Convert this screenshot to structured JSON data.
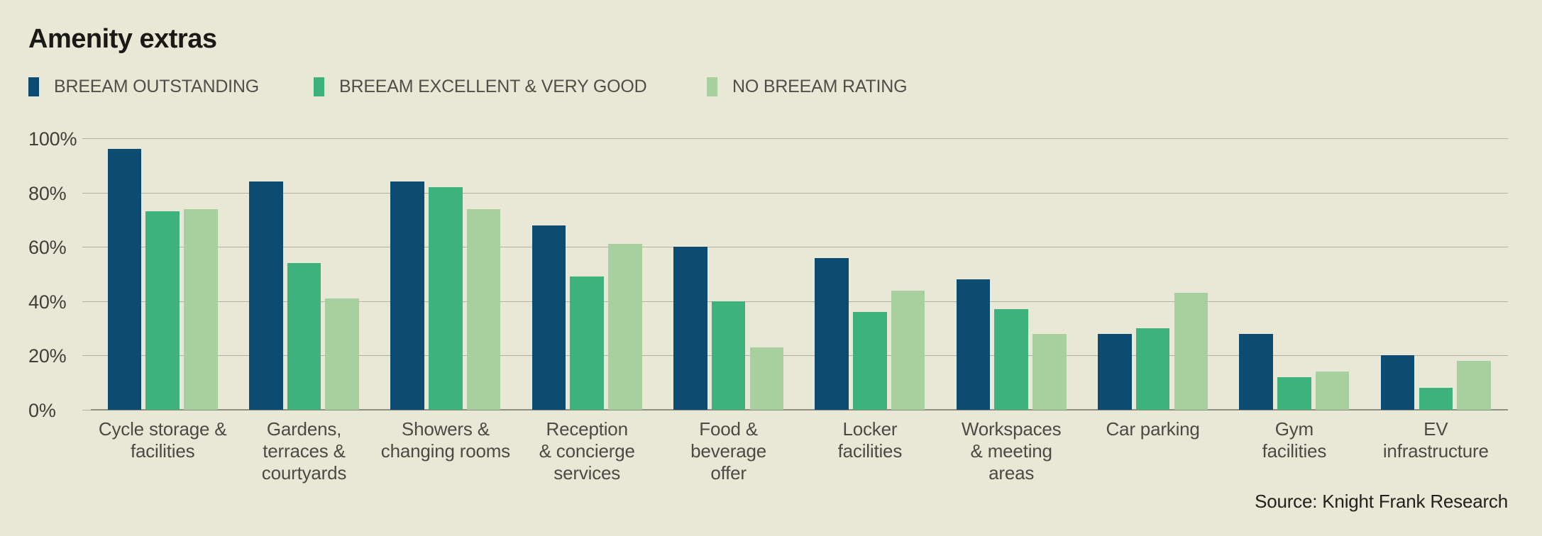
{
  "title": "Amenity extras",
  "source": "Source: Knight Frank Research",
  "colors": {
    "background": "#e9e8d7",
    "gridline": "#b2b1a3",
    "axisline": "#8f8e80",
    "series_outstanding": "#0e4b70",
    "series_excellent_verygood": "#3eb27d",
    "series_no_rating": "#a8cf9e"
  },
  "legend": [
    {
      "label": "BREEAM OUTSTANDING",
      "color": "#0e4b70"
    },
    {
      "label": "BREEAM EXCELLENT & VERY GOOD",
      "color": "#3eb27d"
    },
    {
      "label": "NO BREEAM RATING",
      "color": "#a8cf9e"
    }
  ],
  "chart_data": {
    "type": "bar",
    "title": "Amenity extras",
    "xlabel": "",
    "ylabel": "",
    "ylim": [
      0,
      100
    ],
    "grid": "horizontal",
    "legend_position": "top-left",
    "yticks": [
      {
        "value": 100,
        "label": "100%"
      },
      {
        "value": 80,
        "label": "80%"
      },
      {
        "value": 60,
        "label": "60%"
      },
      {
        "value": 40,
        "label": "40%"
      },
      {
        "value": 20,
        "label": "20%"
      },
      {
        "value": 0,
        "label": "0%"
      }
    ],
    "categories": [
      "Cycle storage & facilities",
      "Gardens, terraces & courtyards",
      "Showers & changing rooms",
      "Reception & concierge services",
      "Food & beverage offer",
      "Locker facilities",
      "Workspaces & meeting areas",
      "Car parking",
      "Gym facilities",
      "EV infrastructure"
    ],
    "category_lines": [
      [
        "Cycle storage &",
        "facilities"
      ],
      [
        "Gardens,",
        "terraces &",
        "courtyards"
      ],
      [
        "Showers &",
        "changing rooms"
      ],
      [
        "Reception",
        "& concierge",
        "services"
      ],
      [
        "Food &",
        "beverage",
        "offer"
      ],
      [
        "Locker",
        "facilities"
      ],
      [
        "Workspaces",
        "& meeting",
        "areas"
      ],
      [
        "Car parking"
      ],
      [
        "Gym",
        "facilities"
      ],
      [
        "EV",
        "infrastructure"
      ]
    ],
    "series": [
      {
        "name": "BREEAM OUTSTANDING",
        "color": "#0e4b70",
        "values": [
          96,
          84,
          84,
          68,
          60,
          56,
          48,
          28,
          28,
          20
        ]
      },
      {
        "name": "BREEAM EXCELLENT & VERY GOOD",
        "color": "#3eb27d",
        "values": [
          73,
          54,
          82,
          49,
          40,
          36,
          37,
          30,
          12,
          8
        ]
      },
      {
        "name": "NO BREEAM RATING",
        "color": "#a8cf9e",
        "values": [
          74,
          41,
          74,
          61,
          23,
          44,
          28,
          43,
          14,
          18
        ]
      }
    ]
  }
}
